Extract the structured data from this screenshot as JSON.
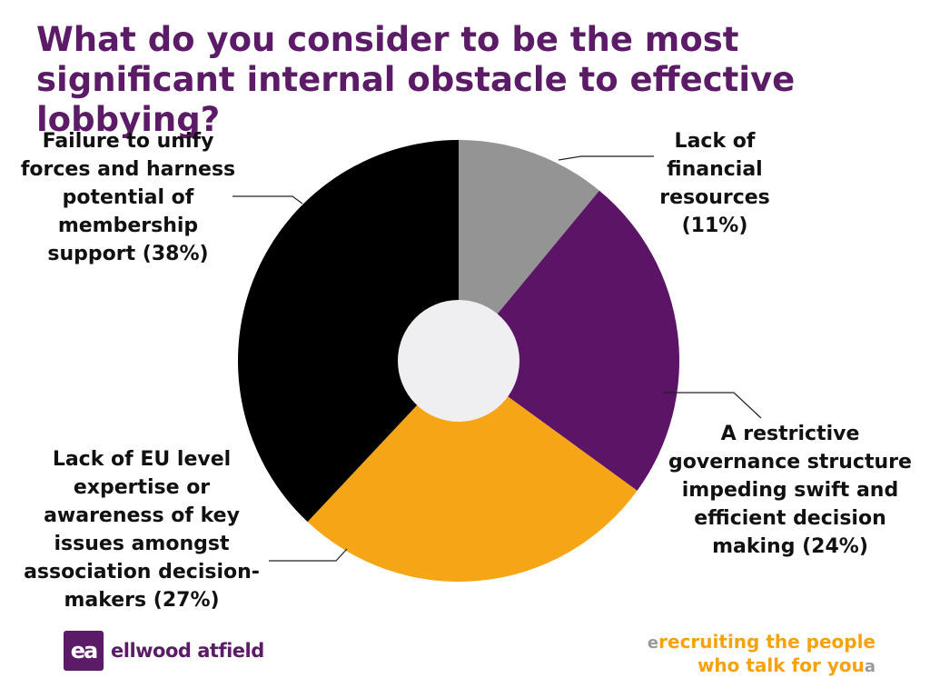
{
  "chart_data": {
    "type": "pie",
    "title": "What do you consider to be the most significant internal obstacle to effective lobbying?",
    "slices": [
      {
        "label": "Lack of financial resources (11%)",
        "value": 11,
        "color": "#949494"
      },
      {
        "label": "A restrictive governance structure impeding swift and efficient decision making (24%)",
        "value": 24,
        "color": "#5b1466"
      },
      {
        "label": "Lack of EU level expertise or awareness of key issues amongst association decision-makers (27%)",
        "value": 27,
        "color": "#f5a516"
      },
      {
        "label": "Failure to unify forces and harness potential of membership support (38%)",
        "value": 38,
        "color": "#000000"
      }
    ],
    "center_color": "#efeff1",
    "donut": true
  },
  "labels": {
    "fail": "Failure to unify forces and harness potential of membership support (38%)",
    "fin": "Lack of financial resources (11%)",
    "gov": "A restrictive governance structure impeding swift and efficient decision making (24%)",
    "eu": "Lack of EU level expertise or awareness of key issues amongst association decision-makers (27%)"
  },
  "footer": {
    "logo_mark": "ea",
    "logo_text": "ellwood atfield",
    "tagline_line1": "recruiting the people",
    "tagline_line2": "who talk for you",
    "tag_mark_open": "e",
    "tag_mark_close": "a"
  }
}
